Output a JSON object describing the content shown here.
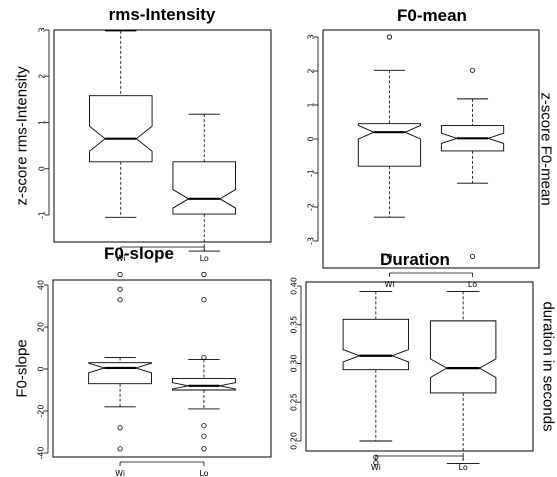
{
  "chart_data": [
    {
      "type": "boxplot",
      "title": "rms-Intensity",
      "ylabel": "z-score rms-Intensity",
      "ylabel_side": "left",
      "ylim": [
        -1.95,
        3.15
      ],
      "yticks": [
        -1,
        0,
        1,
        2,
        3
      ],
      "ytick_labels": [
        "-1",
        "0",
        "1",
        "2",
        "3"
      ],
      "categories": [
        "Wi",
        "Lo"
      ],
      "boxes": [
        {
          "name": "Wi",
          "min": -1.05,
          "q1": 0.15,
          "median": 0.65,
          "q3": 1.58,
          "max": 2.98,
          "notch_low": 0.38,
          "notch_high": 0.92,
          "outliers": []
        },
        {
          "name": "Lo",
          "min": -1.78,
          "q1": -0.98,
          "median": -0.65,
          "q3": 0.15,
          "max": 1.18,
          "notch_low": -0.85,
          "notch_high": -0.45,
          "outliers": []
        }
      ]
    },
    {
      "type": "boxplot",
      "title": "F0-mean",
      "ylabel": "z-score F0-mean",
      "ylabel_side": "right",
      "ylim": [
        -3.7,
        3.3
      ],
      "yticks": [
        -3,
        -2,
        -1,
        0,
        1,
        2,
        3
      ],
      "ytick_labels": [
        "-3",
        "-2",
        "-1",
        "0",
        "1",
        "2",
        "3"
      ],
      "categories": [
        "Wi",
        "Lo"
      ],
      "boxes": [
        {
          "name": "Wi",
          "min": -2.3,
          "q1": -0.8,
          "median": 0.2,
          "q3": 0.45,
          "max": 2.02,
          "notch_low": 0.0,
          "notch_high": 0.4,
          "outliers": [
            3.0,
            -3.45
          ]
        },
        {
          "name": "Lo",
          "min": -1.3,
          "q1": -0.35,
          "median": 0.02,
          "q3": 0.4,
          "max": 1.18,
          "notch_low": -0.13,
          "notch_high": 0.17,
          "outliers": [
            2.02,
            -3.45
          ]
        }
      ]
    },
    {
      "type": "boxplot",
      "title": "F0-slope",
      "ylabel": "F0-slope",
      "ylabel_side": "left",
      "ylim": [
        -42,
        48
      ],
      "yticks": [
        -40,
        -20,
        0,
        20,
        40
      ],
      "ytick_labels": [
        "-40",
        "-20",
        "0",
        "20",
        "40"
      ],
      "categories": [
        "Wi",
        "Lo"
      ],
      "boxes": [
        {
          "name": "Wi",
          "min": -18,
          "q1": -7,
          "median": 0.5,
          "q3": 3,
          "max": 5.5,
          "notch_low": -1.8,
          "notch_high": 2.8,
          "outliers": [
            45,
            38,
            33,
            -28,
            -38
          ]
        },
        {
          "name": "Lo",
          "min": -19,
          "q1": -10,
          "median": -8,
          "q3": -4.5,
          "max": 4.5,
          "notch_low": -9.5,
          "notch_high": -6.5,
          "outliers": [
            45,
            33,
            5.5,
            -27,
            -32,
            -38
          ]
        }
      ]
    },
    {
      "type": "boxplot",
      "title": "Duration",
      "ylabel": "duration in seconds",
      "ylabel_side": "right",
      "ylim": [
        0.165,
        0.405
      ],
      "yticks": [
        0.2,
        0.25,
        0.3,
        0.35,
        0.4
      ],
      "ytick_labels": [
        "0.20",
        "0.25",
        "0.30",
        "0.35",
        "0.40"
      ],
      "categories": [
        "Wi",
        "Lo"
      ],
      "boxes": [
        {
          "name": "Wi",
          "min": 0.2,
          "q1": 0.292,
          "median": 0.31,
          "q3": 0.357,
          "max": 0.393,
          "notch_low": 0.302,
          "notch_high": 0.318,
          "outliers": [
            0.179,
            0.172
          ]
        },
        {
          "name": "Lo",
          "min": 0.171,
          "q1": 0.262,
          "median": 0.294,
          "q3": 0.355,
          "max": 0.393,
          "notch_low": 0.282,
          "notch_high": 0.306,
          "outliers": []
        }
      ]
    }
  ]
}
